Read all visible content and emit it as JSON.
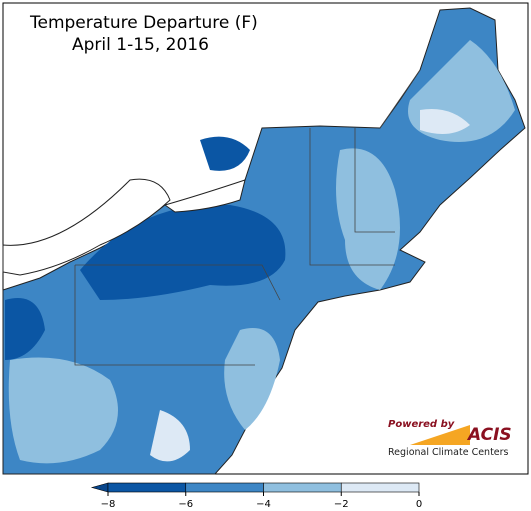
{
  "title": "Temperature Departure (F)",
  "subtitle": "April 1-15, 2016",
  "colorbar": {
    "ticks": [
      {
        "value": -8,
        "label": "−8"
      },
      {
        "value": -6,
        "label": "−6"
      },
      {
        "value": -4,
        "label": "−4"
      },
      {
        "value": -2,
        "label": "−2"
      },
      0
    ],
    "colors": [
      "#0b56a4",
      "#3d86c5",
      "#8fbfdf",
      "#dde9f5"
    ],
    "extend_color": "#08468c"
  },
  "logo": {
    "powered_by": "Powered by",
    "name": "ACIS",
    "tagline": "Regional Climate Centers"
  }
}
